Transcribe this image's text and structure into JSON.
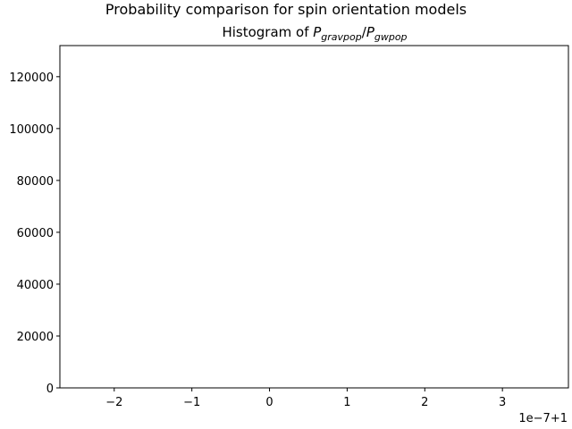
{
  "chart_data": {
    "type": "bar",
    "suptitle": "Probability comparison for spin orientation models",
    "title": {
      "prefix": "Histogram of ",
      "num_base": "P",
      "num_sub": "gravpop",
      "slash": "/",
      "den_base": "P",
      "den_sub": "gwpop"
    },
    "xlabel": "",
    "ylabel": "",
    "x_offset_label": "1e−7+1",
    "xlim": [
      -2.7,
      3.85
    ],
    "ylim": [
      0,
      132000
    ],
    "x_ticks": [
      -2,
      -1,
      0,
      1,
      2,
      3
    ],
    "x_tick_labels": [
      "−2",
      "−1",
      "0",
      "1",
      "2",
      "3"
    ],
    "y_ticks": [
      0,
      20000,
      40000,
      60000,
      80000,
      100000,
      120000
    ],
    "y_tick_labels": [
      "0",
      "20000",
      "40000",
      "60000",
      "80000",
      "100000",
      "120000"
    ],
    "bins": [],
    "counts": [],
    "grid": false,
    "legend": "none"
  }
}
